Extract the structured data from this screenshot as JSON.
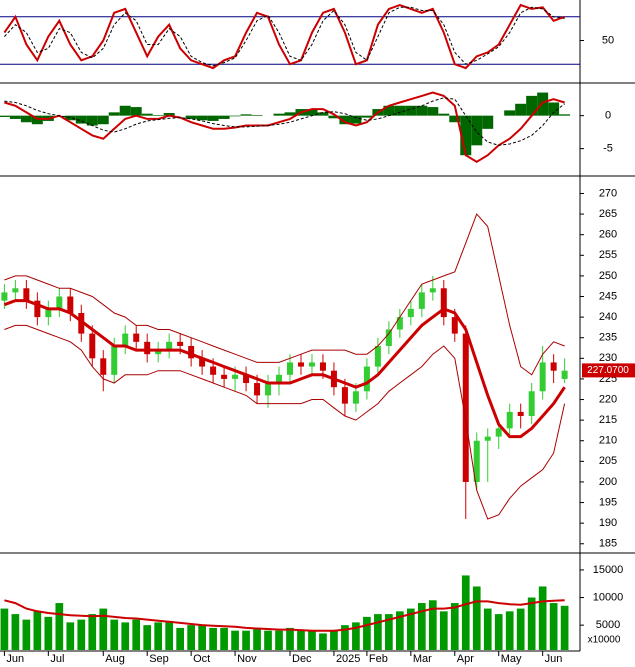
{
  "chart_data": [
    {
      "type": "line",
      "ylim": [
        0,
        100
      ],
      "yticks": [
        50
      ],
      "reference_lines": [
        80,
        20
      ],
      "reference_color": "#000080",
      "series": [
        {
          "color": "#cc0000",
          "values": [
            60,
            80,
            45,
            25,
            55,
            75,
            45,
            25,
            30,
            50,
            85,
            90,
            60,
            30,
            55,
            70,
            40,
            25,
            20,
            15,
            25,
            30,
            60,
            85,
            80,
            45,
            20,
            25,
            60,
            85,
            90,
            60,
            20,
            25,
            70,
            90,
            95,
            90,
            85,
            90,
            60,
            20,
            15,
            30,
            35,
            45,
            70,
            95,
            90,
            92,
            75,
            80
          ]
        },
        {
          "color": "#000000",
          "dashed": true,
          "values": [
            55,
            70,
            60,
            35,
            40,
            65,
            60,
            35,
            28,
            40,
            70,
            85,
            75,
            45,
            45,
            65,
            55,
            30,
            22,
            18,
            22,
            28,
            50,
            75,
            82,
            60,
            30,
            25,
            45,
            75,
            88,
            70,
            35,
            25,
            55,
            85,
            92,
            92,
            88,
            88,
            70,
            35,
            20,
            25,
            33,
            42,
            60,
            85,
            92,
            90,
            80,
            78
          ]
        }
      ]
    },
    {
      "type": "macd",
      "ylim": [
        -9,
        4.8
      ],
      "yticks": [
        0,
        -5
      ],
      "histogram": {
        "color": "#006600",
        "values": [
          -0.2,
          -0.5,
          -1,
          -1.3,
          -0.8,
          0,
          -0.7,
          -1.2,
          -1.5,
          -1.3,
          0.5,
          1.5,
          1.3,
          0.3,
          0.1,
          0.4,
          0,
          -0.5,
          -0.7,
          -0.8,
          -0.5,
          -0.1,
          0.2,
          0.1,
          0,
          0.3,
          0.5,
          1,
          1,
          0.5,
          -0.4,
          -1.3,
          -1.2,
          -0.3,
          1,
          1.5,
          1.5,
          1.5,
          1.5,
          1.3,
          0.3,
          -1,
          -6,
          -4.5,
          -2,
          0,
          0.8,
          1.8,
          3,
          3.5,
          2,
          0.2
        ]
      },
      "series": [
        {
          "color": "#cc0000",
          "values": [
            2,
            1.5,
            0.5,
            -0.5,
            -0.5,
            0,
            -1,
            -2,
            -3,
            -3.5,
            -2,
            -0.5,
            0,
            -0.5,
            -0.5,
            0,
            -0.3,
            -1,
            -1.5,
            -2,
            -2,
            -1.8,
            -1.5,
            -1.5,
            -1.5,
            -1,
            -0.5,
            0.5,
            1,
            1,
            0.2,
            -1,
            -1.5,
            -1,
            0.5,
            1.5,
            2,
            2.5,
            3,
            3.5,
            3,
            1.5,
            -6,
            -7,
            -6,
            -4.5,
            -3.5,
            -2,
            0,
            2,
            2.5,
            2
          ]
        },
        {
          "color": "#000000",
          "dashed": true,
          "values": [
            2.2,
            2,
            1.5,
            0.8,
            0.3,
            0,
            -0.3,
            -0.8,
            -1.5,
            -2.2,
            -2.5,
            -2,
            -1.3,
            -0.8,
            -0.6,
            -0.4,
            -0.3,
            -0.5,
            -0.8,
            -1.2,
            -1.5,
            -1.7,
            -1.7,
            -1.6,
            -1.5,
            -1.3,
            -1,
            -0.5,
            0,
            0.5,
            0.6,
            0.3,
            -0.3,
            -0.7,
            -0.5,
            0,
            0.5,
            1,
            1.5,
            2.2,
            2.7,
            2.5,
            0,
            -2.5,
            -4,
            -4.5,
            -4.3,
            -3.8,
            -3,
            -1.5,
            0.5,
            1.8
          ]
        }
      ]
    },
    {
      "type": "candlestick",
      "ylim": [
        183,
        274
      ],
      "yticks": [
        185,
        190,
        195,
        200,
        205,
        210,
        215,
        220,
        225,
        230,
        235,
        240,
        245,
        250,
        255,
        260,
        265,
        270
      ],
      "up_color": "#33cc33",
      "down_color": "#cc0000",
      "open": [
        244,
        246,
        247,
        244,
        240,
        242,
        245,
        241,
        236,
        230,
        226,
        233,
        236,
        234,
        231,
        232,
        234,
        233,
        230,
        228,
        226,
        225,
        226,
        224,
        221,
        224,
        226,
        229,
        228,
        229,
        227,
        223,
        219,
        222,
        228,
        233,
        237,
        240,
        242,
        246,
        247,
        240,
        236,
        200,
        210,
        211,
        213,
        217,
        216,
        222,
        229,
        225
      ],
      "high": [
        248,
        249,
        249,
        246,
        244,
        247,
        247,
        243,
        238,
        232,
        235,
        238,
        238,
        236,
        234,
        236,
        236,
        235,
        232,
        230,
        228,
        228,
        228,
        226,
        226,
        228,
        231,
        231,
        231,
        231,
        229,
        225,
        224,
        230,
        235,
        239,
        242,
        244,
        248,
        250,
        249,
        242,
        238,
        212,
        213,
        214,
        219,
        219,
        224,
        233,
        231,
        230
      ],
      "low": [
        242,
        244,
        242,
        238,
        238,
        240,
        239,
        234,
        228,
        222,
        224,
        231,
        232,
        229,
        229,
        230,
        231,
        228,
        226,
        224,
        223,
        222,
        222,
        219,
        218,
        221,
        224,
        226,
        226,
        225,
        221,
        216,
        217,
        220,
        226,
        231,
        235,
        238,
        240,
        244,
        238,
        234,
        191,
        198,
        200,
        208,
        211,
        213,
        214,
        220,
        224,
        224
      ],
      "close": [
        246,
        247,
        244,
        240,
        242,
        245,
        241,
        236,
        230,
        226,
        233,
        236,
        234,
        231,
        232,
        234,
        233,
        230,
        228,
        226,
        225,
        226,
        224,
        221,
        224,
        226,
        229,
        228,
        229,
        227,
        223,
        219,
        222,
        228,
        233,
        237,
        240,
        242,
        246,
        247,
        240,
        236,
        200,
        210,
        211,
        213,
        217,
        216,
        222,
        229,
        227,
        227
      ],
      "series": [
        {
          "color": "#cc0000",
          "width": 3,
          "values": [
            243,
            244,
            244,
            243,
            242,
            242,
            241,
            239,
            237,
            235,
            233,
            233,
            232,
            232,
            232,
            232,
            232,
            231,
            230,
            229,
            228,
            227,
            226,
            225,
            224,
            224,
            224,
            225,
            226,
            226,
            225,
            224,
            223,
            224,
            226,
            229,
            232,
            235,
            238,
            240,
            242,
            241,
            237,
            229,
            221,
            214,
            211,
            211,
            213,
            216,
            219,
            223
          ]
        },
        {
          "color": "#aa0000",
          "width": 1,
          "values": [
            249,
            250,
            250,
            249,
            248,
            247,
            247,
            246,
            245,
            243,
            241,
            240,
            238,
            238,
            237,
            237,
            236,
            235,
            234,
            233,
            232,
            231,
            230,
            229,
            229,
            229,
            230,
            231,
            232,
            232,
            232,
            232,
            231,
            231,
            233,
            236,
            240,
            244,
            248,
            249,
            250,
            251,
            258,
            265,
            262,
            250,
            238,
            228,
            226,
            231,
            234,
            233
          ]
        },
        {
          "color": "#aa0000",
          "width": 1,
          "values": [
            237,
            238,
            238,
            237,
            236,
            235,
            234,
            232,
            228,
            225,
            224,
            226,
            226,
            226,
            227,
            227,
            227,
            226,
            225,
            224,
            223,
            222,
            221,
            219,
            219,
            219,
            219,
            219,
            220,
            220,
            218,
            216,
            215,
            217,
            219,
            222,
            224,
            226,
            228,
            231,
            233,
            230,
            215,
            198,
            191,
            192,
            196,
            199,
            201,
            203,
            207,
            219
          ]
        }
      ],
      "last_price": {
        "value": 227.07,
        "label": "227.0700"
      }
    },
    {
      "type": "bar",
      "ylim": [
        500,
        17700
      ],
      "yticks": [
        5000,
        10000,
        15000
      ],
      "unit_label": "x10000",
      "color": "#009900",
      "values": [
        8000,
        7000,
        6000,
        7500,
        6500,
        9000,
        5500,
        6000,
        7000,
        8000,
        6000,
        5500,
        6000,
        5000,
        5500,
        5500,
        4500,
        5000,
        5000,
        4500,
        4500,
        4000,
        4000,
        4500,
        4000,
        4000,
        4500,
        4000,
        4000,
        3500,
        4000,
        5000,
        5500,
        6500,
        7000,
        7000,
        7500,
        8000,
        9000,
        9500,
        7500,
        9000,
        14000,
        12000,
        8000,
        7000,
        7500,
        8000,
        10000,
        12000,
        9000,
        8500
      ],
      "series": [
        {
          "color": "#cc0000",
          "width": 2,
          "values": [
            9500,
            9000,
            8000,
            7500,
            7200,
            7000,
            6800,
            6700,
            6600,
            6700,
            6500,
            6300,
            6200,
            6000,
            5800,
            5600,
            5400,
            5200,
            5000,
            4900,
            4800,
            4700,
            4500,
            4400,
            4300,
            4200,
            4200,
            4100,
            4000,
            4000,
            4000,
            4200,
            4500,
            5000,
            5500,
            6000,
            6500,
            7000,
            7500,
            8000,
            8000,
            8200,
            8800,
            9300,
            9300,
            9000,
            8800,
            8700,
            9000,
            9300,
            9400,
            9500
          ]
        }
      ],
      "xlim": [
        -0.4,
        52.4
      ],
      "xticks": [
        {
          "value": 0,
          "label": "Jun"
        },
        {
          "value": 4,
          "label": "Jul"
        },
        {
          "value": 9,
          "label": "Aug"
        },
        {
          "value": 13,
          "label": "Sep"
        },
        {
          "value": 17,
          "label": "Oct"
        },
        {
          "value": 21,
          "label": "Nov"
        },
        {
          "value": 26,
          "label": "Dec"
        },
        {
          "value": 30,
          "label": "2025"
        },
        {
          "value": 33,
          "label": "Feb"
        },
        {
          "value": 37,
          "label": "Mar"
        },
        {
          "value": 41,
          "label": "Apr"
        },
        {
          "value": 45,
          "label": "May"
        },
        {
          "value": 49,
          "label": "Jun"
        }
      ]
    }
  ]
}
